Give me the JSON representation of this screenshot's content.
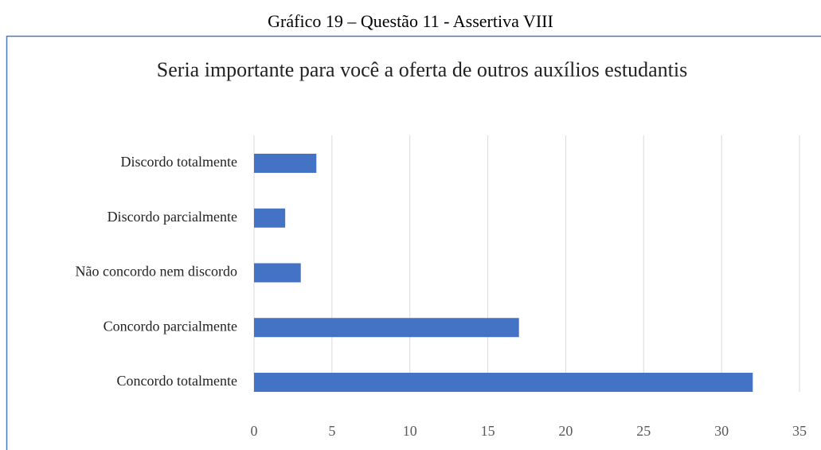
{
  "caption": "Gráfico 19 – Questão 11 - Assertiva VIII",
  "chart_data": {
    "type": "bar",
    "orientation": "horizontal",
    "title": "Seria importante para você a oferta de outros auxílios estudantis",
    "categories": [
      "Discordo totalmente",
      "Discordo parcialmente",
      "Não concordo nem discordo",
      "Concordo parcialmente",
      "Concordo totalmente"
    ],
    "values": [
      4,
      2,
      3,
      17,
      32
    ],
    "color": "#4472c4",
    "xlim": [
      0,
      35
    ],
    "xticks": [
      0,
      5,
      10,
      15,
      20,
      25,
      30,
      35
    ],
    "grid": true
  }
}
